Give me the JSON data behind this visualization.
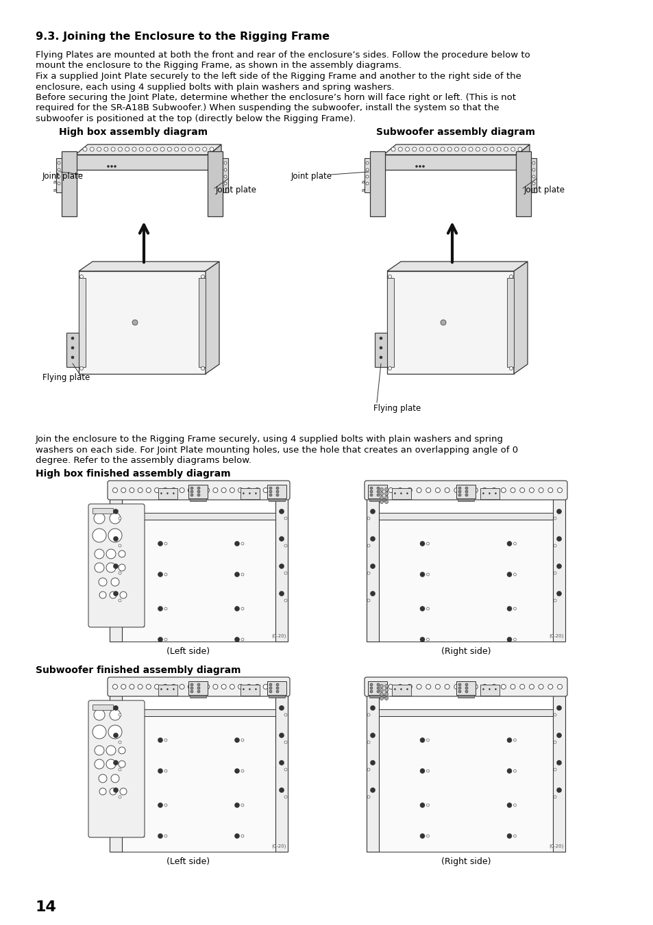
{
  "page_number": "14",
  "section_title": "9.3. Joining the Enclosure to the Rigging Frame",
  "paragraphs": [
    "Flying Plates are mounted at both the front and rear of the enclosure’s sides. Follow the procedure below to",
    "mount the enclosure to the Rigging Frame, as shown in the assembly diagrams.",
    "Fix a supplied Joint Plate securely to the left side of the Rigging Frame and another to the right side of the",
    "enclosure, each using 4 supplied bolts with plain washers and spring washers.",
    "Before securing the Joint Plate, determine whether the enclosure’s horn will face right or left. (This is not",
    "required for the SR-A18B Subwoofer.) When suspending the subwoofer, install the system so that the",
    "subwoofer is positioned at the top (directly below the Rigging Frame)."
  ],
  "diagram1_title": "High box assembly diagram",
  "diagram2_title": "Subwoofer assembly diagram",
  "finished_section_title": "High box finished assembly diagram",
  "subwoofer_finished_title": "Subwoofer finished assembly diagram",
  "middle_paragraph_lines": [
    "Join the enclosure to the Rigging Frame securely, using 4 supplied bolts with plain washers and spring",
    "washers on each side. For Joint Plate mounting holes, use the hole that creates an overlapping angle of 0",
    "degree. Refer to the assembly diagrams below."
  ],
  "left_side_label": "(Left side)",
  "right_side_label": "(Right side)",
  "bg_color": "#ffffff",
  "text_color": "#000000"
}
